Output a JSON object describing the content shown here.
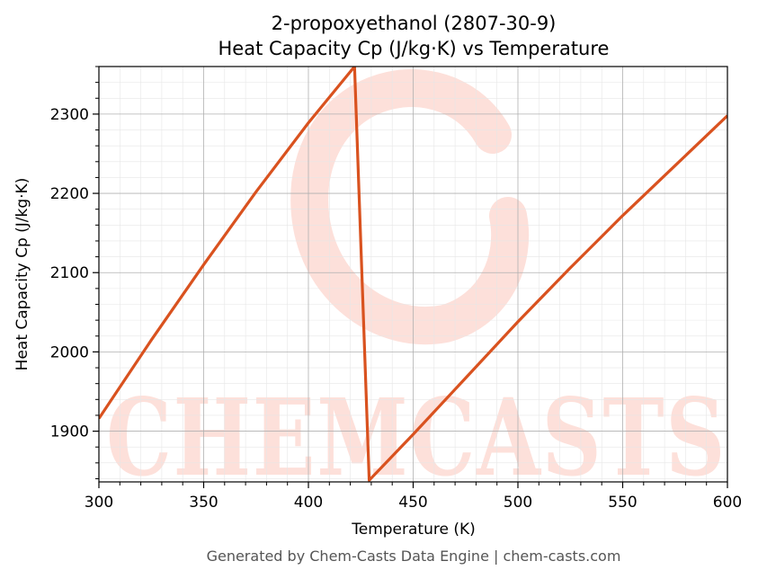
{
  "chart_data": {
    "type": "line",
    "title": "2-propoxyethanol (2807-30-9)",
    "subtitle": "Heat Capacity Cp (J/kg·K) vs Temperature",
    "xlabel": "Temperature (K)",
    "ylabel": "Heat Capacity Cp (J/kg·K)",
    "xlim": [
      300,
      600
    ],
    "ylim": [
      1836,
      2360
    ],
    "xticks": [
      300,
      350,
      400,
      450,
      500,
      550,
      600
    ],
    "yticks": [
      1900,
      2000,
      2100,
      2200,
      2300
    ],
    "grid": true,
    "series": [
      {
        "color": "#d9521f",
        "x": [
          300,
          325,
          350,
          375,
          400,
          422,
          429,
          450,
          475,
          500,
          525,
          550,
          575,
          600
        ],
        "y": [
          1916,
          2015,
          2110,
          2202,
          2289,
          2360,
          1838,
          1896,
          1967,
          2038,
          2106,
          2172,
          2235,
          2298
        ]
      }
    ]
  },
  "watermark": {
    "text": "CHEMCASTS",
    "color": "#fde0da"
  },
  "footer": "Generated by Chem-Casts Data Engine | chem-casts.com"
}
